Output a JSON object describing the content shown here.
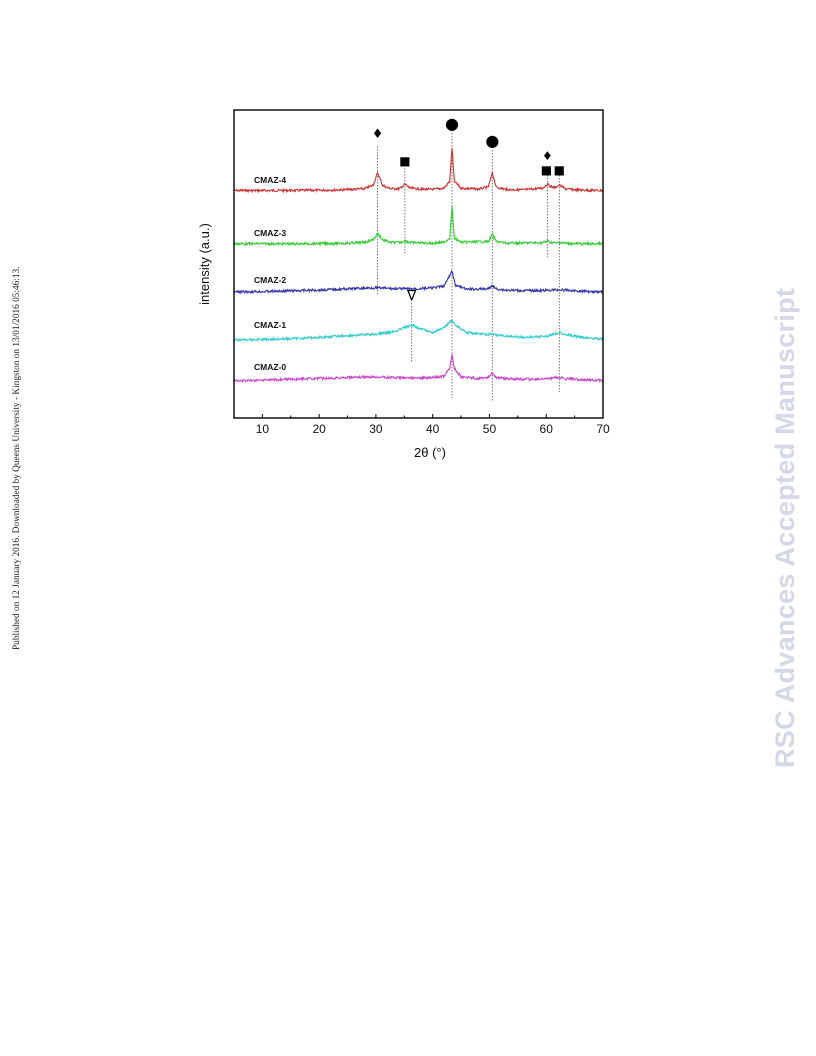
{
  "side_note": "Published on 12 January 2016. Downloaded by Queens University - Kingston on 13/01/2016 05:46:13.",
  "watermark": "RSC Advances Accepted Manuscript",
  "chart_data": {
    "type": "line",
    "xlabel": "2θ (°)",
    "ylabel": "intensity (a.u.)",
    "xlim": [
      5,
      70
    ],
    "xticks": [
      10,
      20,
      30,
      40,
      50,
      60,
      70
    ],
    "yticks": false,
    "grid": false,
    "legend": "labels above each curve",
    "series": [
      {
        "name": "CMAZ-4",
        "color": "#cc3333",
        "baseline": 0.0,
        "points": [
          [
            5,
            1.0
          ],
          [
            10,
            1.0
          ],
          [
            15,
            1.2
          ],
          [
            20,
            1.6
          ],
          [
            25,
            2.8
          ],
          [
            28,
            5.0
          ],
          [
            29.5,
            12.0
          ],
          [
            30.3,
            38.0
          ],
          [
            31.2,
            11.0
          ],
          [
            32.5,
            5.0
          ],
          [
            34.2,
            5.0
          ],
          [
            35.1,
            14.0
          ],
          [
            36,
            6.0
          ],
          [
            38,
            4.0
          ],
          [
            40,
            3.0
          ],
          [
            42,
            6.0
          ],
          [
            43.0,
            20.0
          ],
          [
            43.4,
            90.0
          ],
          [
            43.8,
            20.0
          ],
          [
            45,
            6.0
          ],
          [
            48,
            4.0
          ],
          [
            49.8,
            8.0
          ],
          [
            50.5,
            38.0
          ],
          [
            51.2,
            8.0
          ],
          [
            53,
            3.0
          ],
          [
            56,
            2.5
          ],
          [
            59.3,
            6.0
          ],
          [
            60.2,
            14.0
          ],
          [
            61.0,
            8.0
          ],
          [
            61.6,
            8.0
          ],
          [
            62.3,
            12.0
          ],
          [
            63.5,
            4.0
          ],
          [
            66,
            2.0
          ],
          [
            70,
            1.0
          ]
        ]
      },
      {
        "name": "CMAZ-3",
        "color": "#33cc33",
        "baseline": 0.0,
        "points": [
          [
            5,
            0.5
          ],
          [
            15,
            0.5
          ],
          [
            20,
            1.0
          ],
          [
            25,
            1.8
          ],
          [
            28,
            4.0
          ],
          [
            29.5,
            10.0
          ],
          [
            30.3,
            25.0
          ],
          [
            31.2,
            10.0
          ],
          [
            32.5,
            4.0
          ],
          [
            34.3,
            3.5
          ],
          [
            35.1,
            8.0
          ],
          [
            36,
            3.5
          ],
          [
            40,
            2.0
          ],
          [
            42,
            4.0
          ],
          [
            43.0,
            14.0
          ],
          [
            43.4,
            90.0
          ],
          [
            43.8,
            14.0
          ],
          [
            45,
            4.0
          ],
          [
            49.8,
            6.0
          ],
          [
            50.5,
            22.0
          ],
          [
            51.2,
            6.0
          ],
          [
            53,
            2.0
          ],
          [
            59.4,
            3.0
          ],
          [
            60.2,
            7.0
          ],
          [
            61,
            3.0
          ],
          [
            61.8,
            2.5
          ],
          [
            62.3,
            4.0
          ],
          [
            63.5,
            1.5
          ],
          [
            66,
            0.5
          ],
          [
            70,
            0.5
          ]
        ]
      },
      {
        "name": "CMAZ-2",
        "color": "#3333aa",
        "baseline": 0.0,
        "points": [
          [
            5,
            0.0
          ],
          [
            10,
            1.0
          ],
          [
            15,
            2.5
          ],
          [
            20,
            4.5
          ],
          [
            25,
            7.0
          ],
          [
            30,
            9.5
          ],
          [
            33,
            7.5
          ],
          [
            35,
            7.0
          ],
          [
            37,
            7.0
          ],
          [
            40,
            9.0
          ],
          [
            42,
            13.0
          ],
          [
            43.4,
            46.0
          ],
          [
            44,
            15.0
          ],
          [
            46,
            6.0
          ],
          [
            49.8,
            7.0
          ],
          [
            50.5,
            14.0
          ],
          [
            51.2,
            7.0
          ],
          [
            53,
            4.0
          ],
          [
            57,
            3.0
          ],
          [
            60,
            3.5
          ],
          [
            62,
            5.0
          ],
          [
            63.5,
            4.0
          ],
          [
            66,
            2.0
          ],
          [
            70,
            0.5
          ]
        ]
      },
      {
        "name": "CMAZ-1",
        "color": "#33cccc",
        "baseline": 0.0,
        "points": [
          [
            5,
            0.0
          ],
          [
            10,
            1.0
          ],
          [
            15,
            2.5
          ],
          [
            20,
            5.0
          ],
          [
            25,
            8.0
          ],
          [
            30,
            11.0
          ],
          [
            33,
            15.0
          ],
          [
            35,
            23.0
          ],
          [
            36.5,
            27.0
          ],
          [
            38,
            20.0
          ],
          [
            40,
            14.0
          ],
          [
            42,
            22.0
          ],
          [
            43.2,
            36.0
          ],
          [
            44.5,
            24.0
          ],
          [
            46,
            14.0
          ],
          [
            49.5,
            10.0
          ],
          [
            50.5,
            11.0
          ],
          [
            52,
            8.0
          ],
          [
            56,
            5.0
          ],
          [
            60,
            7.0
          ],
          [
            62.3,
            14.0
          ],
          [
            64,
            9.0
          ],
          [
            66,
            5.0
          ],
          [
            70,
            2.0
          ]
        ]
      },
      {
        "name": "CMAZ-0",
        "color": "#cc44cc",
        "baseline": 0.0,
        "points": [
          [
            5,
            0.0
          ],
          [
            10,
            1.5
          ],
          [
            15,
            3.0
          ],
          [
            20,
            4.5
          ],
          [
            25,
            6.0
          ],
          [
            30,
            7.0
          ],
          [
            35,
            5.5
          ],
          [
            38,
            5.0
          ],
          [
            40,
            6.0
          ],
          [
            42,
            8.0
          ],
          [
            43.0,
            22.0
          ],
          [
            43.4,
            47.0
          ],
          [
            43.8,
            22.0
          ],
          [
            45,
            7.0
          ],
          [
            48,
            4.5
          ],
          [
            49.8,
            6.0
          ],
          [
            50.5,
            15.0
          ],
          [
            51.2,
            6.0
          ],
          [
            53,
            4.0
          ],
          [
            57,
            3.0
          ],
          [
            60,
            3.5
          ],
          [
            62,
            6.0
          ],
          [
            63.5,
            4.0
          ],
          [
            66,
            2.5
          ],
          [
            70,
            1.0
          ]
        ]
      }
    ],
    "reference_lines": [
      30.3,
      35.1,
      36.3,
      43.4,
      50.5,
      60.2,
      62.3
    ],
    "phase_markers": [
      {
        "shape": "diamond",
        "symbol": "♦",
        "x": 30.3
      },
      {
        "shape": "square",
        "symbol": "■",
        "x": 35.1
      },
      {
        "shape": "circle",
        "symbol": "●",
        "x": 43.4
      },
      {
        "shape": "circle",
        "symbol": "●",
        "x": 50.5
      },
      {
        "shape": "diamond",
        "symbol": "♦",
        "x": 60.2
      },
      {
        "shape": "square",
        "symbol": "■",
        "x": 60.2
      },
      {
        "shape": "square",
        "symbol": "■",
        "x": 62.3
      },
      {
        "shape": "triangle",
        "symbol": "∇",
        "x": 36.3
      }
    ]
  }
}
